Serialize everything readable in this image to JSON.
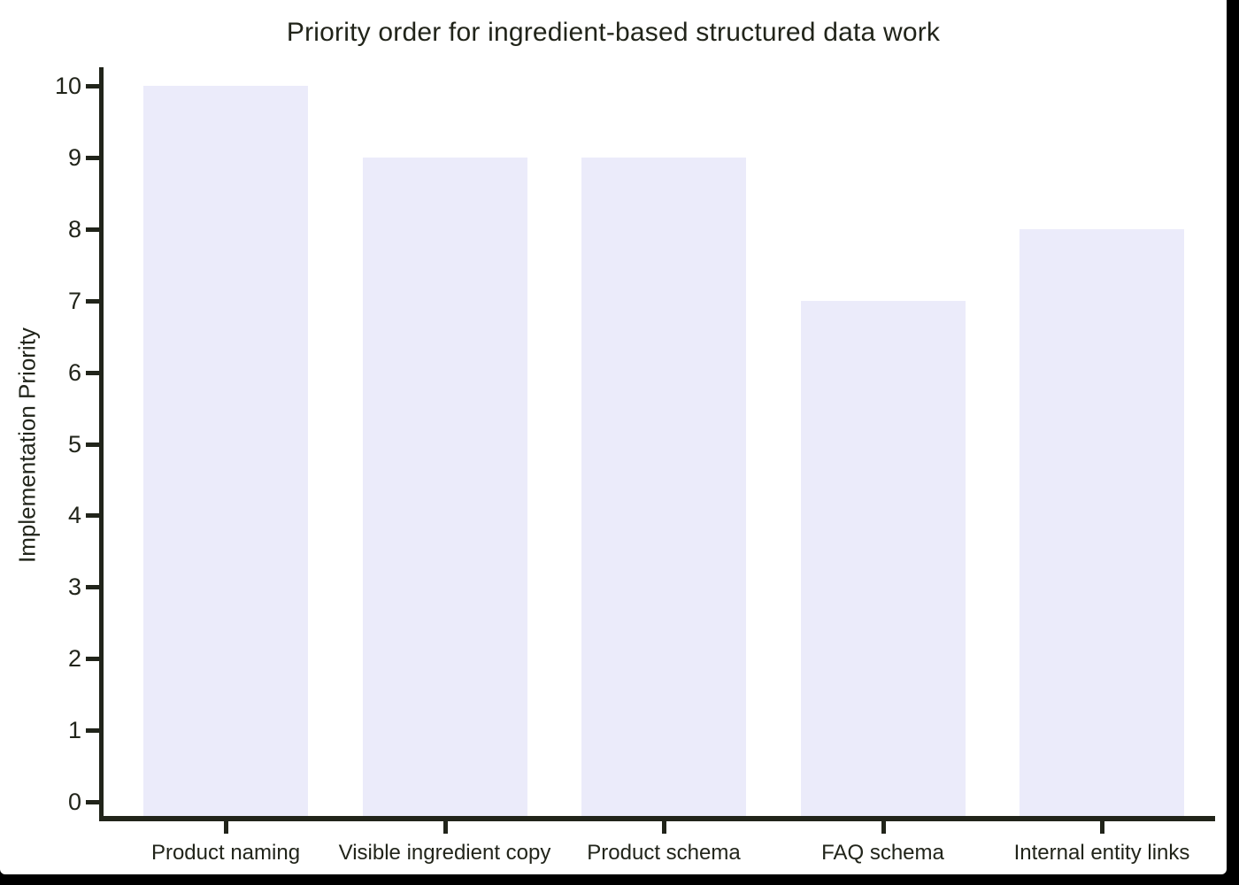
{
  "window": {
    "outer_background": "#000000",
    "canvas_background": "#ffffff"
  },
  "chart_data": {
    "type": "bar",
    "title": "Priority order for ingredient-based structured data work",
    "categories": [
      "Product naming",
      "Visible ingredient copy",
      "Product schema",
      "FAQ schema",
      "Internal entity links"
    ],
    "values": [
      10,
      9,
      9,
      7,
      8
    ],
    "xlabel": "",
    "ylabel": "Implementation Priority",
    "ylim": [
      0,
      10
    ],
    "yticks": [
      0,
      1,
      2,
      3,
      4,
      5,
      6,
      7,
      8,
      9,
      10
    ],
    "grid": false,
    "legend": false,
    "bar_color": "#EBEBFA",
    "axis_color": "#21241A",
    "text_color": "#21241A"
  }
}
